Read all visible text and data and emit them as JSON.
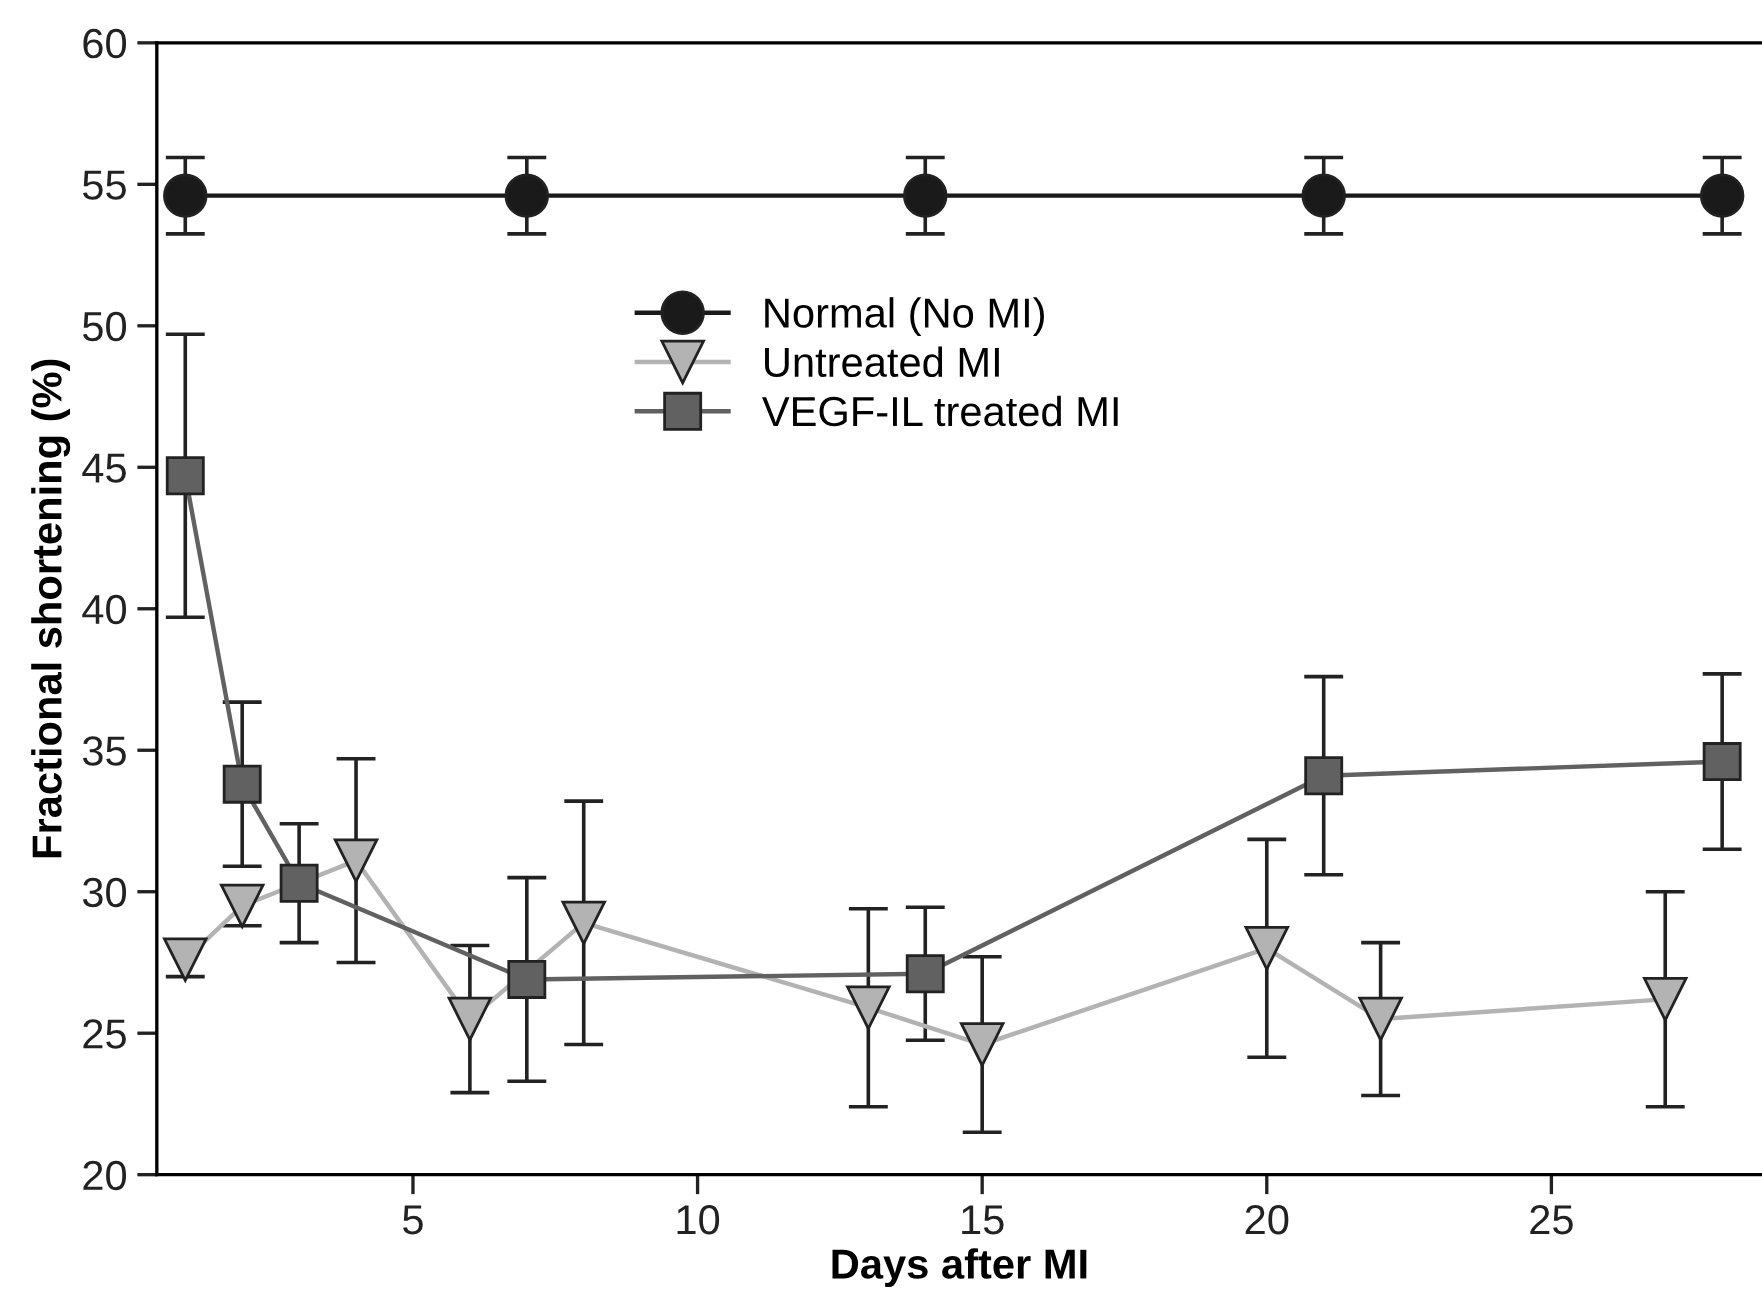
{
  "chart_data": {
    "type": "line",
    "xlabel": "Days after MI",
    "ylabel": "Fractional shortening (%)",
    "xlim": [
      0.5,
      28.7
    ],
    "xticks": [
      5,
      10,
      15,
      20,
      25
    ],
    "ylim": [
      20,
      60
    ],
    "yticks": [
      20,
      25,
      30,
      35,
      40,
      45,
      50,
      55,
      60
    ],
    "grid": false,
    "legend": "top",
    "line_style": "solid",
    "series": [
      {
        "name": "Normal (No MI)",
        "color": "#1a1a1a",
        "marker": "circle",
        "x": [
          1,
          7,
          14,
          21,
          28
        ],
        "values": [
          54.6,
          54.6,
          54.6,
          54.6,
          54.6
        ],
        "errors": [
          1.35,
          1.35,
          1.35,
          1.35,
          1.35
        ]
      },
      {
        "name": "Untreated MI",
        "color": "#b3b3b3",
        "marker": "triangle",
        "x": [
          1,
          2,
          4,
          6,
          8,
          13,
          15,
          20,
          22,
          27
        ],
        "values": [
          27.6,
          29.5,
          31.1,
          25.5,
          28.9,
          25.9,
          24.6,
          28.0,
          25.5,
          26.2
        ],
        "errors": [
          0.6,
          0.7,
          3.6,
          2.6,
          4.3,
          3.5,
          3.1,
          3.85,
          2.7,
          3.8
        ]
      },
      {
        "name": "VEGF-IL treated MI",
        "color": "#616161",
        "marker": "square",
        "x": [
          1,
          2,
          3,
          7,
          14,
          21,
          28
        ],
        "values": [
          44.7,
          33.8,
          30.3,
          26.9,
          27.1,
          34.1,
          34.6
        ],
        "errors": [
          5.0,
          2.9,
          2.1,
          3.6,
          2.35,
          3.5,
          3.1
        ]
      }
    ]
  }
}
